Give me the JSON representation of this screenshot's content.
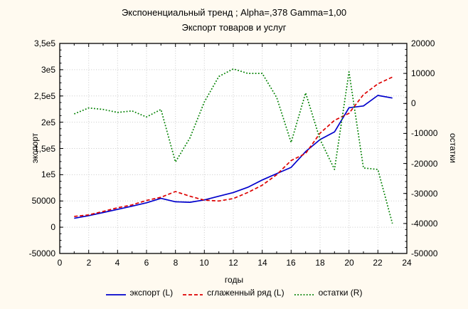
{
  "figure": {
    "background": "#fffaf0",
    "plot_background": "#ffffff",
    "frame_color": "#000000",
    "grid_color": "#c9c9c9"
  },
  "chart_data": {
    "type": "line",
    "title": "Экспоненциальный тренд ; Alpha=,378 Gamma=1,00",
    "subtitle": "Экспорт товаров и услуг",
    "xlabel": "годы",
    "ylabel_left": "экспорт",
    "ylabel_right": "остатки",
    "grid": true,
    "legend_position": "bottom",
    "xlim": [
      0,
      24
    ],
    "x_tick_values": [
      0,
      2,
      4,
      6,
      8,
      10,
      12,
      14,
      16,
      18,
      20,
      22,
      24
    ],
    "x_tick_labels": [
      "0",
      "2",
      "4",
      "6",
      "8",
      "10",
      "12",
      "14",
      "16",
      "18",
      "20",
      "22",
      "24"
    ],
    "ylim_left": [
      -50000,
      350000
    ],
    "left_tick_values": [
      350000,
      300000,
      250000,
      200000,
      150000,
      100000,
      50000,
      0,
      -50000
    ],
    "left_tick_labels": [
      "3,5e5",
      "3e5",
      "2,5e5",
      "2e5",
      "1,5e5",
      "1e5",
      "50000",
      "0",
      "-50000"
    ],
    "ylim_right": [
      -50000,
      20000
    ],
    "right_tick_values": [
      20000,
      10000,
      0,
      -10000,
      -20000,
      -30000,
      -40000,
      -50000
    ],
    "right_tick_labels": [
      "20000",
      "10000",
      "0",
      "-10000",
      "-20000",
      "-30000",
      "-40000",
      "-50000"
    ],
    "x": [
      1,
      2,
      3,
      4,
      5,
      6,
      7,
      8,
      9,
      10,
      11,
      12,
      13,
      14,
      15,
      16,
      17,
      18,
      19,
      20,
      21,
      22,
      23
    ],
    "series": [
      {
        "name": "экспорт (L)",
        "axis": "left",
        "line_style": "solid",
        "color": "#0000cc",
        "values": [
          17000,
          22000,
          28000,
          34000,
          40000,
          46500,
          55000,
          48500,
          47500,
          52000,
          59000,
          66000,
          76000,
          90000,
          102000,
          114000,
          144000,
          167000,
          181500,
          227500,
          231000,
          251000,
          246000
        ]
      },
      {
        "name": "сглаженный ряд (L)",
        "axis": "left",
        "line_style": "dashed",
        "color": "#dd0000",
        "values": [
          20500,
          23500,
          30000,
          37000,
          42500,
          51000,
          57000,
          68000,
          59000,
          51500,
          50000,
          54500,
          66000,
          80000,
          100000,
          127000,
          140500,
          179000,
          203500,
          217000,
          252500,
          273000,
          286000
        ]
      },
      {
        "name": "остатки (R)",
        "axis": "right",
        "line_style": "dotted",
        "color": "#008000",
        "values": [
          -3500,
          -1500,
          -2000,
          -3000,
          -2500,
          -4500,
          -2000,
          -19500,
          -11500,
          500,
          9000,
          11500,
          10000,
          10000,
          2000,
          -13000,
          3500,
          -12000,
          -22000,
          10500,
          -21500,
          -22000,
          -40000
        ]
      }
    ]
  }
}
